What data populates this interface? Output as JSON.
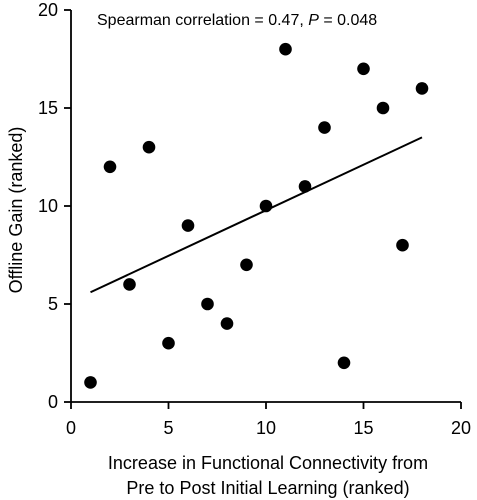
{
  "chart_data": {
    "type": "scatter",
    "annotation": {
      "prefix": "Spearman correlation = 0.47, ",
      "p_symbol": "P",
      "suffix": " = 0.048"
    },
    "xlabel_lines": [
      "Increase in Functional Connectivity from",
      "Pre to Post Initial Learning (ranked)"
    ],
    "ylabel": "Offline Gain (ranked)",
    "xlim": [
      0,
      20
    ],
    "ylim": [
      0,
      20
    ],
    "xticks": [
      "0",
      "5",
      "10",
      "15",
      "20"
    ],
    "yticks": [
      "0",
      "5",
      "10",
      "15",
      "20"
    ],
    "grid": false,
    "series": [
      {
        "points": [
          {
            "x": 1,
            "y": 1
          },
          {
            "x": 2,
            "y": 12
          },
          {
            "x": 3,
            "y": 6
          },
          {
            "x": 4,
            "y": 13
          },
          {
            "x": 5,
            "y": 3
          },
          {
            "x": 6,
            "y": 9
          },
          {
            "x": 7,
            "y": 5
          },
          {
            "x": 8,
            "y": 4
          },
          {
            "x": 9,
            "y": 7
          },
          {
            "x": 10,
            "y": 10
          },
          {
            "x": 11,
            "y": 18
          },
          {
            "x": 12,
            "y": 11
          },
          {
            "x": 13,
            "y": 14
          },
          {
            "x": 14,
            "y": 2
          },
          {
            "x": 15,
            "y": 17
          },
          {
            "x": 16,
            "y": 15
          },
          {
            "x": 17,
            "y": 8
          },
          {
            "x": 18,
            "y": 16
          }
        ]
      }
    ],
    "fit_line": {
      "x": [
        1,
        18
      ],
      "y": [
        5.6,
        13.5
      ]
    },
    "colors": {
      "points": "#000000",
      "line": "#000000",
      "axes": "#000000"
    }
  }
}
